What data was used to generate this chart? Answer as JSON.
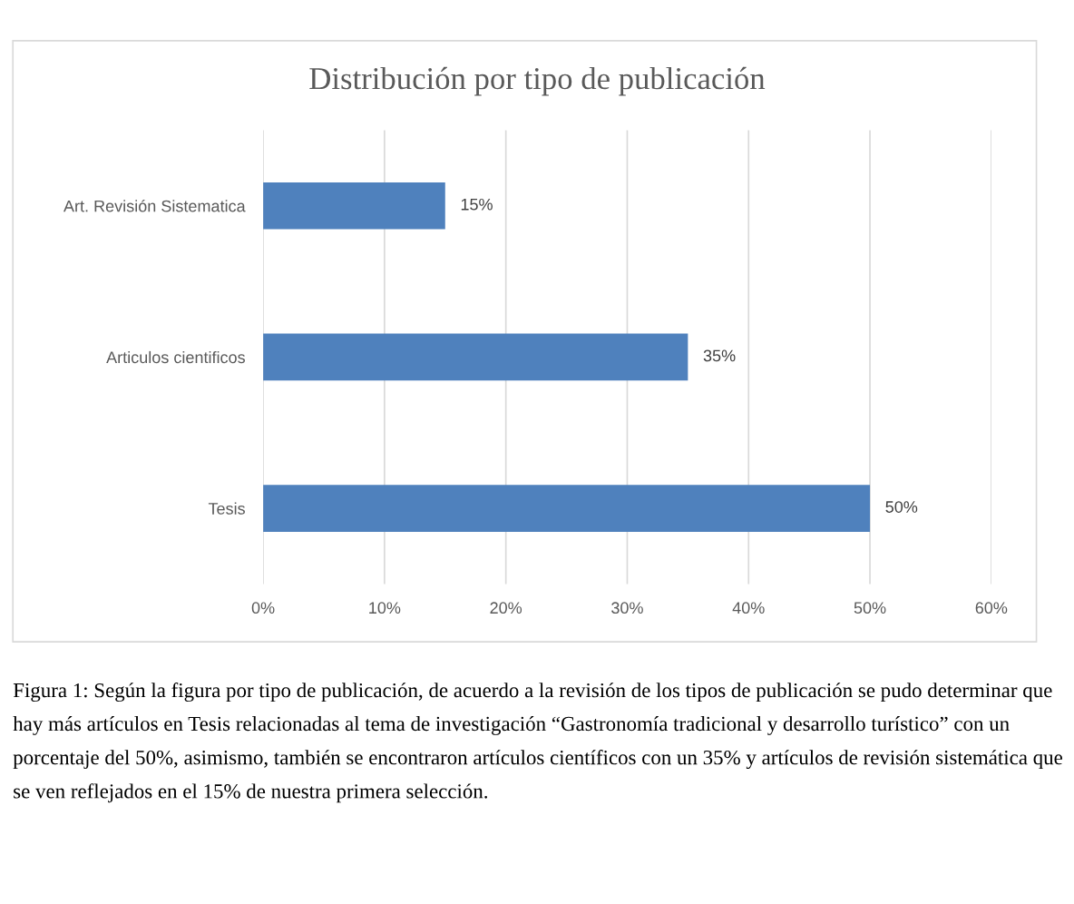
{
  "chart_data": {
    "type": "bar",
    "orientation": "horizontal",
    "title": "Distribución por tipo de publicación",
    "categories": [
      "Art. Revisión Sistematica",
      "Articulos cientificos",
      "Tesis"
    ],
    "values": [
      15,
      35,
      50
    ],
    "color": "#4f81bd",
    "value_labels": [
      "15%",
      "35%",
      "50%"
    ],
    "xlim": [
      0,
      60
    ],
    "xticks": [
      {
        "value": 0,
        "label": "0%"
      },
      {
        "value": 10,
        "label": "10%"
      },
      {
        "value": 20,
        "label": "20%"
      },
      {
        "value": 30,
        "label": "30%"
      },
      {
        "value": 40,
        "label": "40%"
      },
      {
        "value": 50,
        "label": "50%"
      },
      {
        "value": 60,
        "label": "60%"
      }
    ],
    "grid": "x",
    "legend": false,
    "annotations": [
      "Figura 1: Según la figura por tipo de publicación, de acuerdo a la revisión de los tipos de publicación se pudo determinar que hay más artículos en Tesis relacionadas al tema de investigación “Gastronomía tradicional y desarrollo turístico” con un porcentaje del 50%, asimismo, también se encontraron artículos científicos con un 35% y artículos de revisión sistemática que se ven reflejados en el 15% de nuestra primera selección."
    ]
  }
}
